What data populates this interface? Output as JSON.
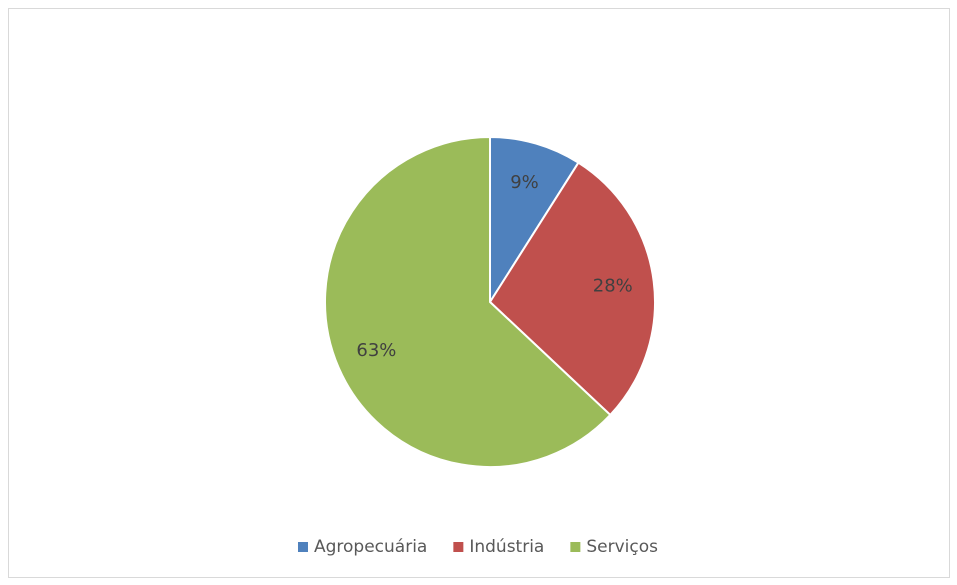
{
  "chart_data": {
    "type": "pie",
    "categories": [
      "Agropecuária",
      "Indústria",
      "Serviços"
    ],
    "values": [
      9,
      28,
      63
    ],
    "value_labels": [
      "9%",
      "28%",
      "63%"
    ],
    "colors": [
      "#4f81bd",
      "#c0504d",
      "#9bbb59"
    ],
    "legend": "bottom"
  }
}
